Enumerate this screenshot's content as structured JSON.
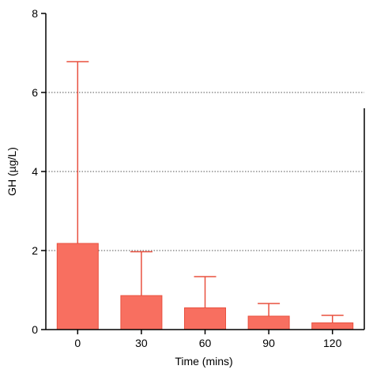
{
  "chart_data": {
    "type": "bar",
    "title": "",
    "xlabel": "Time (mins)",
    "ylabel": "GH (µg/L)",
    "categories": [
      "0",
      "30",
      "60",
      "90",
      "120"
    ],
    "values": [
      2.18,
      0.86,
      0.55,
      0.34,
      0.17
    ],
    "error_upper": [
      6.78,
      1.97,
      1.34,
      0.66,
      0.36
    ],
    "ylim": [
      0,
      8
    ],
    "yticks": [
      0,
      2,
      4,
      6,
      8
    ],
    "ytick_labels": [
      "0",
      "2",
      "4",
      "6",
      "8"
    ],
    "grid": "horizontal dotted",
    "legend": "none",
    "colors": {
      "bar_fill": "#f86f60",
      "bar_edge": "#e8503f",
      "error_bar": "#e8503f",
      "axis": "#000000",
      "grid": "#555555"
    }
  }
}
